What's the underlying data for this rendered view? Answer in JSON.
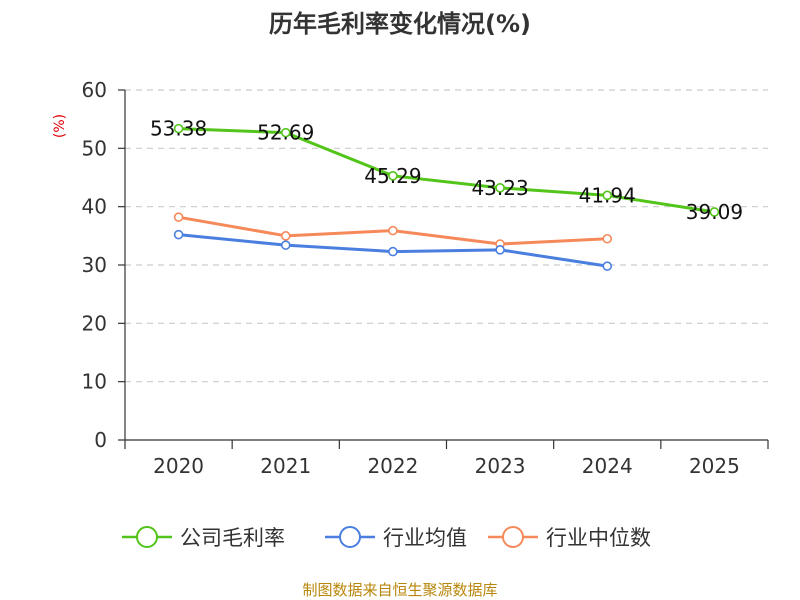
{
  "colors": {
    "company": "#52c41a",
    "industry_avg": "#4a7fe0",
    "industry_median": "#f5895a",
    "unit": "#e0000b",
    "source": "#b8860b",
    "grid": "#cccccc",
    "axis": "#333333"
  },
  "chart_data": {
    "type": "line",
    "title": "历年毛利率变化情况(%)",
    "ylabel": "(%)",
    "xlabel": "",
    "categories": [
      "2020",
      "2021",
      "2022",
      "2023",
      "2024",
      "2025"
    ],
    "ylim": [
      0,
      60
    ],
    "yticks": [
      0,
      10,
      20,
      30,
      40,
      50,
      60
    ],
    "grid": "horizontal-dashed",
    "legend_position": "bottom",
    "series": [
      {
        "name": "公司毛利率",
        "color_key": "company",
        "values": [
          53.38,
          52.69,
          45.29,
          43.23,
          41.94,
          39.09
        ],
        "data_labels": [
          "53.38",
          "52.69",
          "45.29",
          "43.23",
          "41.94",
          "39.09"
        ]
      },
      {
        "name": "行业均值",
        "color_key": "industry_avg",
        "values": [
          35.2,
          33.4,
          32.3,
          32.6,
          29.8,
          null
        ]
      },
      {
        "name": "行业中位数",
        "color_key": "industry_median",
        "values": [
          38.2,
          35.0,
          35.9,
          33.6,
          34.5,
          null
        ]
      }
    ]
  },
  "source_text": "制图数据来自恒生聚源数据库"
}
